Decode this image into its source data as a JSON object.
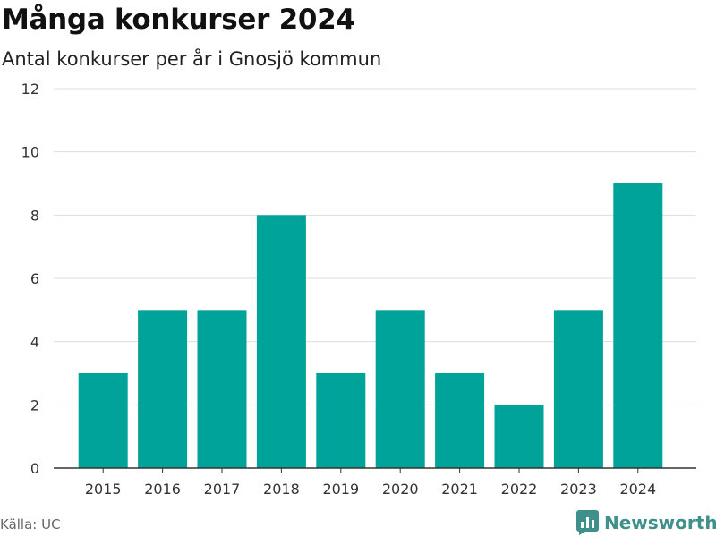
{
  "title": "Många konkurser 2024",
  "subtitle": "Antal konkurser per år i Gnosjö kommun",
  "source": "Källa: UC",
  "brand": "Newsworthy",
  "colors": {
    "bar": "#00a39a",
    "grid": "#dddddd",
    "axis": "#333333",
    "brand": "#3f8f8a"
  },
  "chart_data": {
    "type": "bar",
    "categories": [
      "2015",
      "2016",
      "2017",
      "2018",
      "2019",
      "2020",
      "2021",
      "2022",
      "2023",
      "2024"
    ],
    "values": [
      3,
      5,
      5,
      8,
      3,
      5,
      3,
      2,
      5,
      9
    ],
    "title": "Många konkurser 2024",
    "subtitle": "Antal konkurser per år i Gnosjö kommun",
    "xlabel": "",
    "ylabel": "",
    "ylim": [
      0,
      12
    ],
    "yticks": [
      0,
      2,
      4,
      6,
      8,
      10,
      12
    ],
    "grid": true,
    "legend": "none"
  }
}
